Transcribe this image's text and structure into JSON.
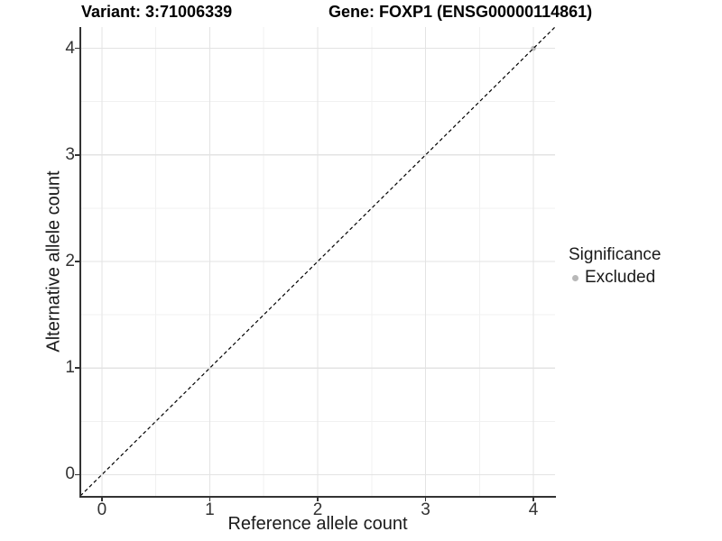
{
  "chart_data": {
    "type": "scatter",
    "title_left": "Variant: 3:71006339",
    "title_right": "Gene: FOXP1 (ENSG00000114861)",
    "xlabel": "Reference allele count",
    "ylabel": "Alternative allele count",
    "xlim": [
      -0.2,
      4.2
    ],
    "ylim": [
      -0.2,
      4.2
    ],
    "xticks": [
      0,
      1,
      2,
      3,
      4
    ],
    "yticks": [
      0,
      1,
      2,
      3,
      4
    ],
    "xticks_minor": [
      0.5,
      1.5,
      2.5,
      3.5
    ],
    "yticks_minor": [
      0.5,
      1.5,
      2.5,
      3.5
    ],
    "grid": "major+minor",
    "points": [
      {
        "x": 4,
        "y": 4,
        "significance": "Excluded"
      }
    ],
    "reference_line": {
      "style": "dashed",
      "from": [
        -0.2,
        -0.2
      ],
      "to": [
        4.2,
        4.2
      ],
      "color": "#000000"
    },
    "legend": {
      "title": "Significance",
      "position": "right",
      "entries": [
        {
          "label": "Excluded",
          "color": "#b8b8b8"
        }
      ]
    },
    "colors": {
      "point_excluded": "#b8b8b8",
      "grid_major": "#e3e3e3",
      "grid_minor": "#f1f1f1",
      "axis": "#333333",
      "tick_label": "#333333",
      "background": "#ffffff"
    }
  }
}
